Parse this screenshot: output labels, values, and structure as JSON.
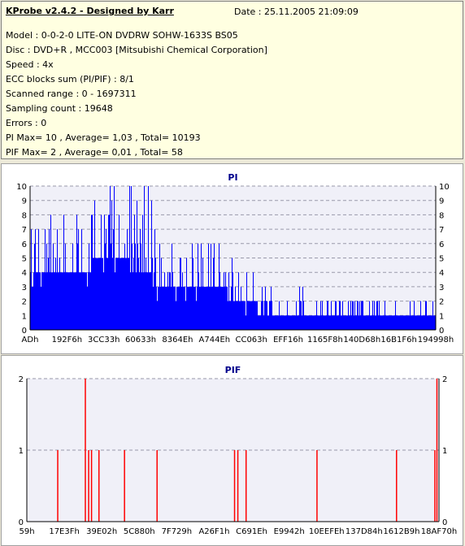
{
  "info": {
    "app_title": "KProbe v2.4.2 - Designed by Karr",
    "date": "Date : 25.11.2005 21:09:09",
    "lines": [
      "Model : 0-0-2-0 LITE-ON DVDRW SOHW-1633S BS05",
      "Disc : DVD+R , MCC003 [Mitsubishi Chemical Corporation]",
      "Speed : 4x",
      "ECC blocks sum (PI/PIF) : 8/1",
      "Scanned range : 0 - 1697311",
      "Sampling count : 19648",
      "Errors : 0",
      "PI Max= 10 , Average= 1,03 , Total= 10193",
      "PIF Max= 2 , Average= 0,01 , Total= 58"
    ]
  },
  "colors": {
    "pi": "#0000ff",
    "pif": "#ff0000",
    "axis": "#000000",
    "grid": "#9999aa"
  },
  "chart_data": [
    {
      "type": "bar",
      "title": "PI",
      "ylim": [
        0,
        10
      ],
      "yticks": [
        0,
        1,
        2,
        3,
        4,
        5,
        6,
        7,
        8,
        9,
        10
      ],
      "xticks": [
        "ADh",
        "192F6h",
        "3CC33h",
        "60633h",
        "8364Eh",
        "A744Eh",
        "CC063h",
        "EFF16h",
        "1165F8h",
        "140D68h",
        "16B1F6h",
        "194998h"
      ],
      "grid": "dashed horizontal",
      "profile": [
        {
          "x": 0.0,
          "base": 4,
          "peak": 7
        },
        {
          "x": 0.1,
          "base": 4,
          "peak": 8
        },
        {
          "x": 0.2,
          "base": 5,
          "peak": 10
        },
        {
          "x": 0.3,
          "base": 4,
          "peak": 10
        },
        {
          "x": 0.32,
          "base": 3,
          "peak": 7
        },
        {
          "x": 0.45,
          "base": 3,
          "peak": 6
        },
        {
          "x": 0.52,
          "base": 2,
          "peak": 4
        },
        {
          "x": 0.6,
          "base": 1,
          "peak": 3
        },
        {
          "x": 0.75,
          "base": 1,
          "peak": 2
        },
        {
          "x": 1.0,
          "base": 1,
          "peak": 2
        }
      ]
    },
    {
      "type": "bar",
      "title": "PIF",
      "ylim": [
        0,
        2
      ],
      "yticks": [
        0,
        1,
        2
      ],
      "xticks": [
        "59h",
        "17E3Fh",
        "39E02h",
        "5C880h",
        "7F729h",
        "A26F1h",
        "C691Eh",
        "E9942h",
        "10EEFEh",
        "137D84h",
        "1612B9h",
        "18AF70h"
      ],
      "grid": "dashed horizontal",
      "spikes": [
        {
          "x": 0.075,
          "v": 1
        },
        {
          "x": 0.142,
          "v": 2
        },
        {
          "x": 0.15,
          "v": 1
        },
        {
          "x": 0.157,
          "v": 1
        },
        {
          "x": 0.175,
          "v": 1
        },
        {
          "x": 0.237,
          "v": 1
        },
        {
          "x": 0.316,
          "v": 1
        },
        {
          "x": 0.504,
          "v": 1
        },
        {
          "x": 0.512,
          "v": 1
        },
        {
          "x": 0.532,
          "v": 1
        },
        {
          "x": 0.704,
          "v": 1
        },
        {
          "x": 0.897,
          "v": 1
        },
        {
          "x": 0.99,
          "v": 1
        },
        {
          "x": 0.995,
          "v": 2
        }
      ]
    }
  ]
}
